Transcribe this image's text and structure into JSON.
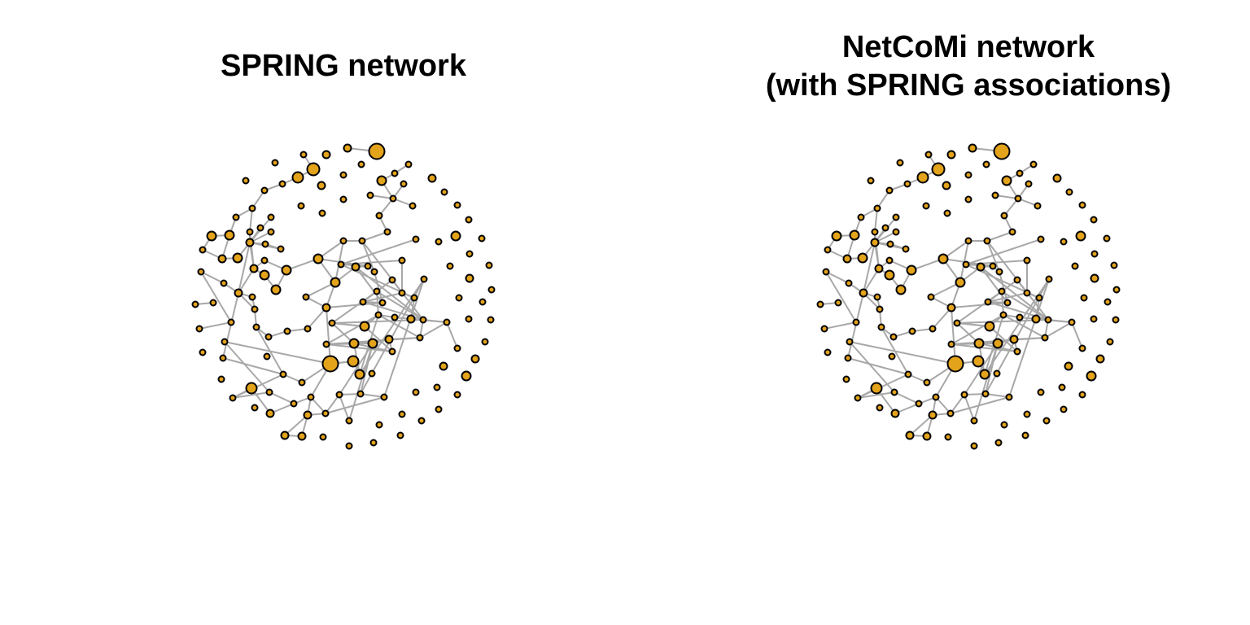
{
  "colors": {
    "node_fill": "#E3A31A",
    "node_stroke": "#000000",
    "edge": "#A8A8A8",
    "background": "#FFFFFF"
  },
  "panels": [
    {
      "id": "spring",
      "title_lines": [
        "SPRING network"
      ]
    },
    {
      "id": "netcomi",
      "title_lines": [
        "NetCoMi network",
        "(with SPRING associations)"
      ]
    }
  ]
}
